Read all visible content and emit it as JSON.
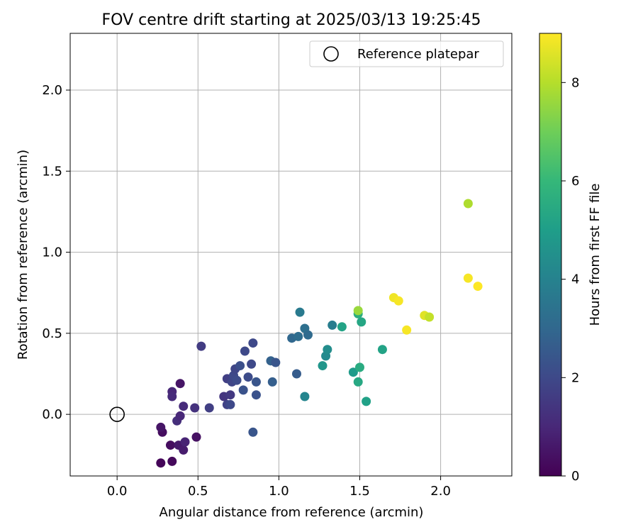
{
  "chart_data": {
    "type": "scatter",
    "title": "FOV centre drift starting at 2025/03/13 19:25:45",
    "xlabel": "Angular distance from reference (arcmin)",
    "ylabel": "Rotation from reference (arcmin)",
    "xlim": [
      -0.29,
      2.44
    ],
    "ylim": [
      -0.38,
      2.35
    ],
    "xticks": [
      "0.0",
      "0.5",
      "1.0",
      "1.5",
      "2.0"
    ],
    "yticks": [
      "0.0",
      "0.5",
      "1.0",
      "1.5",
      "2.0"
    ],
    "grid": true,
    "legend": {
      "location": "top-right",
      "entries": [
        "Reference platepar"
      ]
    },
    "reference_point": {
      "x": 0.0,
      "y": 0.0,
      "label": "Reference platepar",
      "marker": "open-circle"
    },
    "colorbar": {
      "label": "Hours from first FF file",
      "colormap": "viridis",
      "range": [
        0,
        9
      ],
      "ticks": [
        "0",
        "2",
        "4",
        "6",
        "8"
      ]
    },
    "colormap_stops": [
      "#440154",
      "#482878",
      "#3e4989",
      "#31688e",
      "#26828e",
      "#1f9e89",
      "#35b779",
      "#6ece58",
      "#b5de2b",
      "#fde725"
    ],
    "points": [
      {
        "x": 0.27,
        "y": -0.3,
        "hours": 0.1
      },
      {
        "x": 0.34,
        "y": -0.29,
        "hours": 0.2
      },
      {
        "x": 0.28,
        "y": -0.11,
        "hours": 0.3
      },
      {
        "x": 0.27,
        "y": -0.08,
        "hours": 0.5
      },
      {
        "x": 0.33,
        "y": -0.19,
        "hours": 0.3
      },
      {
        "x": 0.49,
        "y": -0.14,
        "hours": 0.4
      },
      {
        "x": 0.38,
        "y": -0.19,
        "hours": 0.6
      },
      {
        "x": 0.41,
        "y": -0.22,
        "hours": 0.7
      },
      {
        "x": 0.42,
        "y": -0.17,
        "hours": 0.9
      },
      {
        "x": 0.39,
        "y": 0.19,
        "hours": 0.5
      },
      {
        "x": 0.34,
        "y": 0.14,
        "hours": 1.0
      },
      {
        "x": 0.34,
        "y": 0.11,
        "hours": 1.1
      },
      {
        "x": 0.37,
        "y": -0.04,
        "hours": 1.2
      },
      {
        "x": 0.39,
        "y": -0.01,
        "hours": 1.0
      },
      {
        "x": 0.41,
        "y": 0.05,
        "hours": 1.1
      },
      {
        "x": 0.48,
        "y": 0.04,
        "hours": 1.3
      },
      {
        "x": 0.52,
        "y": 0.42,
        "hours": 1.6
      },
      {
        "x": 0.57,
        "y": 0.04,
        "hours": 1.7
      },
      {
        "x": 0.66,
        "y": 0.11,
        "hours": 1.4
      },
      {
        "x": 0.68,
        "y": 0.22,
        "hours": 1.7
      },
      {
        "x": 0.68,
        "y": 0.06,
        "hours": 1.8
      },
      {
        "x": 0.7,
        "y": 0.06,
        "hours": 2.0
      },
      {
        "x": 0.7,
        "y": 0.12,
        "hours": 1.5
      },
      {
        "x": 0.71,
        "y": 0.2,
        "hours": 1.9
      },
      {
        "x": 0.72,
        "y": 0.24,
        "hours": 2.0
      },
      {
        "x": 0.73,
        "y": 0.28,
        "hours": 1.9
      },
      {
        "x": 0.74,
        "y": 0.21,
        "hours": 2.1
      },
      {
        "x": 0.76,
        "y": 0.3,
        "hours": 2.2
      },
      {
        "x": 0.78,
        "y": 0.15,
        "hours": 2.3
      },
      {
        "x": 0.79,
        "y": 0.39,
        "hours": 2.0
      },
      {
        "x": 0.81,
        "y": 0.23,
        "hours": 2.1
      },
      {
        "x": 0.83,
        "y": 0.31,
        "hours": 2.0
      },
      {
        "x": 0.84,
        "y": 0.44,
        "hours": 2.0
      },
      {
        "x": 0.84,
        "y": -0.11,
        "hours": 2.4
      },
      {
        "x": 0.86,
        "y": 0.2,
        "hours": 2.4
      },
      {
        "x": 0.86,
        "y": 0.12,
        "hours": 2.3
      },
      {
        "x": 0.95,
        "y": 0.33,
        "hours": 2.8
      },
      {
        "x": 0.96,
        "y": 0.2,
        "hours": 2.7
      },
      {
        "x": 0.98,
        "y": 0.32,
        "hours": 2.4
      },
      {
        "x": 1.08,
        "y": 0.47,
        "hours": 3.0
      },
      {
        "x": 1.11,
        "y": 0.25,
        "hours": 2.6
      },
      {
        "x": 1.12,
        "y": 0.48,
        "hours": 3.2
      },
      {
        "x": 1.13,
        "y": 0.63,
        "hours": 3.7
      },
      {
        "x": 1.16,
        "y": 0.53,
        "hours": 3.3
      },
      {
        "x": 1.16,
        "y": 0.11,
        "hours": 4.1
      },
      {
        "x": 1.18,
        "y": 0.49,
        "hours": 3.1
      },
      {
        "x": 1.27,
        "y": 0.3,
        "hours": 4.7
      },
      {
        "x": 1.29,
        "y": 0.36,
        "hours": 4.3
      },
      {
        "x": 1.3,
        "y": 0.4,
        "hours": 4.4
      },
      {
        "x": 1.33,
        "y": 0.55,
        "hours": 3.8
      },
      {
        "x": 1.39,
        "y": 0.54,
        "hours": 5.2
      },
      {
        "x": 1.46,
        "y": 0.26,
        "hours": 4.9
      },
      {
        "x": 1.49,
        "y": 0.62,
        "hours": 5.6
      },
      {
        "x": 1.49,
        "y": 0.2,
        "hours": 5.4
      },
      {
        "x": 1.5,
        "y": 0.29,
        "hours": 5.5
      },
      {
        "x": 1.49,
        "y": 0.64,
        "hours": 7.6
      },
      {
        "x": 1.51,
        "y": 0.57,
        "hours": 5.3
      },
      {
        "x": 1.54,
        "y": 0.08,
        "hours": 5.1
      },
      {
        "x": 1.64,
        "y": 0.4,
        "hours": 5.2
      },
      {
        "x": 1.71,
        "y": 0.72,
        "hours": 8.8
      },
      {
        "x": 1.74,
        "y": 0.7,
        "hours": 8.9
      },
      {
        "x": 1.79,
        "y": 0.52,
        "hours": 8.9
      },
      {
        "x": 1.9,
        "y": 0.61,
        "hours": 8.6
      },
      {
        "x": 1.93,
        "y": 0.6,
        "hours": 8.2
      },
      {
        "x": 2.17,
        "y": 1.3,
        "hours": 7.9
      },
      {
        "x": 2.17,
        "y": 0.84,
        "hours": 8.9
      },
      {
        "x": 2.23,
        "y": 0.79,
        "hours": 9.0
      }
    ]
  }
}
